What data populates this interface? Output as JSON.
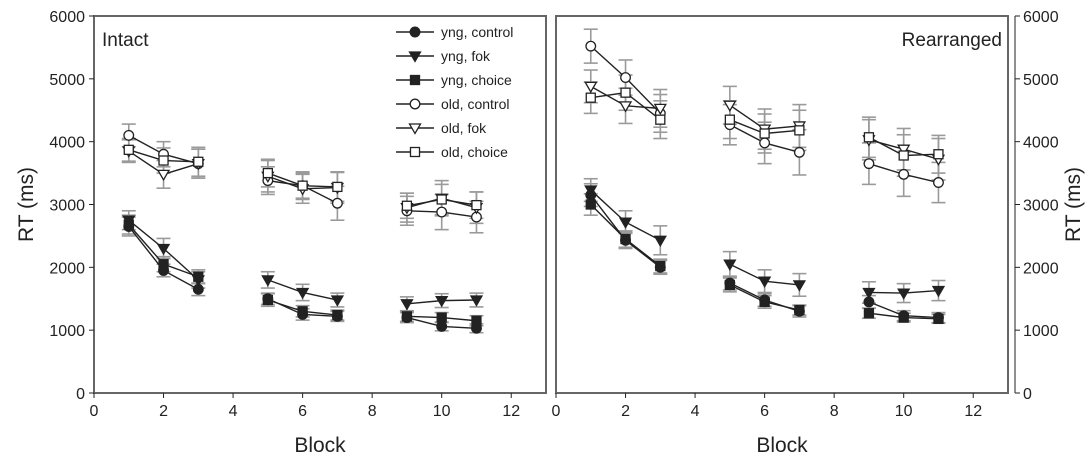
{
  "chart_data": [
    {
      "type": "line",
      "panel_title": "Intact",
      "xlabel": "Block",
      "ylabel": "RT (ms)",
      "xlim": [
        0,
        13
      ],
      "ylim": [
        0,
        6000
      ],
      "xticks": [
        0,
        2,
        4,
        6,
        8,
        10,
        12
      ],
      "yticks": [
        0,
        1000,
        2000,
        3000,
        4000,
        5000,
        6000
      ],
      "grid": false,
      "series": [
        {
          "name": "yng, control",
          "marker": "circle",
          "fill": "filled",
          "segments": [
            [
              [
                1,
                2650,
                150
              ],
              [
                2,
                1950,
                100
              ],
              [
                3,
                1650,
                100
              ]
            ],
            [
              [
                5,
                1500,
                90
              ],
              [
                6,
                1250,
                90
              ],
              [
                7,
                1220,
                80
              ]
            ],
            [
              [
                9,
                1200,
                80
              ],
              [
                10,
                1060,
                70
              ],
              [
                11,
                1030,
                70
              ]
            ]
          ]
        },
        {
          "name": "yng, fok",
          "marker": "triangle-down",
          "fill": "filled",
          "segments": [
            [
              [
                1,
                2750,
                150
              ],
              [
                2,
                2300,
                160
              ],
              [
                3,
                1800,
                130
              ]
            ],
            [
              [
                5,
                1800,
                130
              ],
              [
                6,
                1600,
                130
              ],
              [
                7,
                1480,
                110
              ]
            ],
            [
              [
                9,
                1420,
                110
              ],
              [
                10,
                1470,
                110
              ],
              [
                11,
                1480,
                110
              ]
            ]
          ]
        },
        {
          "name": "yng, choice",
          "marker": "square",
          "fill": "filled",
          "segments": [
            [
              [
                1,
                2680,
                150
              ],
              [
                2,
                2050,
                120
              ],
              [
                3,
                1850,
                110
              ]
            ],
            [
              [
                5,
                1480,
                100
              ],
              [
                6,
                1300,
                90
              ],
              [
                7,
                1240,
                80
              ]
            ],
            [
              [
                9,
                1220,
                80
              ],
              [
                10,
                1200,
                80
              ],
              [
                11,
                1150,
                80
              ]
            ]
          ]
        },
        {
          "name": "old, control",
          "marker": "circle",
          "fill": "open",
          "segments": [
            [
              [
                1,
                4100,
                180
              ],
              [
                2,
                3800,
                200
              ],
              [
                3,
                3650,
                230
              ]
            ],
            [
              [
                5,
                3380,
                220
              ],
              [
                6,
                3300,
                220
              ],
              [
                7,
                3020,
                270
              ]
            ],
            [
              [
                9,
                2900,
                230
              ],
              [
                10,
                2880,
                280
              ],
              [
                11,
                2800,
                250
              ]
            ]
          ]
        },
        {
          "name": "old, fok",
          "marker": "triangle-down",
          "fill": "open",
          "segments": [
            [
              [
                1,
                3850,
                180
              ],
              [
                2,
                3480,
                220
              ],
              [
                3,
                3650,
                230
              ]
            ],
            [
              [
                5,
                3450,
                250
              ],
              [
                6,
                3250,
                230
              ],
              [
                7,
                3270,
                250
              ]
            ],
            [
              [
                9,
                2950,
                230
              ],
              [
                10,
                3100,
                280
              ],
              [
                11,
                2950,
                250
              ]
            ]
          ]
        },
        {
          "name": "old, choice",
          "marker": "square",
          "fill": "open",
          "segments": [
            [
              [
                1,
                3870,
                180
              ],
              [
                2,
                3700,
                200
              ],
              [
                3,
                3680,
                230
              ]
            ],
            [
              [
                5,
                3500,
                220
              ],
              [
                6,
                3300,
                200
              ],
              [
                7,
                3280,
                230
              ]
            ],
            [
              [
                9,
                2980,
                200
              ],
              [
                10,
                3080,
                240
              ],
              [
                11,
                2990,
                210
              ]
            ]
          ]
        }
      ]
    },
    {
      "type": "line",
      "panel_title": "Rearranged",
      "xlabel": "Block",
      "ylabel": "RT (ms)",
      "xlim": [
        0,
        13
      ],
      "ylim": [
        0,
        6000
      ],
      "xticks": [
        0,
        2,
        4,
        6,
        8,
        10,
        12
      ],
      "yticks": [
        0,
        1000,
        2000,
        3000,
        4000,
        5000,
        6000
      ],
      "grid": false,
      "series": [
        {
          "name": "yng, control",
          "marker": "circle",
          "fill": "filled",
          "segments": [
            [
              [
                1,
                3150,
                180
              ],
              [
                2,
                2430,
                130
              ],
              [
                3,
                2000,
                110
              ]
            ],
            [
              [
                5,
                1750,
                110
              ],
              [
                6,
                1480,
                100
              ],
              [
                7,
                1300,
                90
              ]
            ],
            [
              [
                9,
                1450,
                100
              ],
              [
                10,
                1230,
                80
              ],
              [
                11,
                1200,
                80
              ]
            ]
          ]
        },
        {
          "name": "yng, fok",
          "marker": "triangle-down",
          "fill": "filled",
          "segments": [
            [
              [
                1,
                3230,
                180
              ],
              [
                2,
                2720,
                180
              ],
              [
                3,
                2430,
                230
              ]
            ],
            [
              [
                5,
                2050,
                200
              ],
              [
                6,
                1780,
                180
              ],
              [
                7,
                1720,
                180
              ]
            ],
            [
              [
                9,
                1600,
                170
              ],
              [
                10,
                1590,
                150
              ],
              [
                11,
                1630,
                160
              ]
            ]
          ]
        },
        {
          "name": "yng, choice",
          "marker": "square",
          "fill": "filled",
          "segments": [
            [
              [
                1,
                3000,
                170
              ],
              [
                2,
                2450,
                130
              ],
              [
                3,
                2020,
                110
              ]
            ],
            [
              [
                5,
                1720,
                110
              ],
              [
                6,
                1450,
                100
              ],
              [
                7,
                1320,
                80
              ]
            ],
            [
              [
                9,
                1270,
                80
              ],
              [
                10,
                1200,
                70
              ],
              [
                11,
                1180,
                70
              ]
            ]
          ]
        },
        {
          "name": "old, control",
          "marker": "circle",
          "fill": "open",
          "segments": [
            [
              [
                1,
                5520,
                270
              ],
              [
                2,
                5020,
                280
              ],
              [
                3,
                4450,
                300
              ]
            ],
            [
              [
                5,
                4270,
                320
              ],
              [
                6,
                3980,
                330
              ],
              [
                7,
                3830,
                360
              ]
            ],
            [
              [
                9,
                3650,
                330
              ],
              [
                10,
                3480,
                350
              ],
              [
                11,
                3350,
                320
              ]
            ]
          ]
        },
        {
          "name": "old, fok",
          "marker": "triangle-down",
          "fill": "open",
          "segments": [
            [
              [
                1,
                4880,
                260
              ],
              [
                2,
                4570,
                280
              ],
              [
                3,
                4530,
                300
              ]
            ],
            [
              [
                5,
                4580,
                300
              ],
              [
                6,
                4200,
                320
              ],
              [
                7,
                4250,
                340
              ]
            ],
            [
              [
                9,
                4030,
                320
              ],
              [
                10,
                3880,
                330
              ],
              [
                11,
                3720,
                330
              ]
            ]
          ]
        },
        {
          "name": "old, choice",
          "marker": "square",
          "fill": "open",
          "segments": [
            [
              [
                1,
                4700,
                250
              ],
              [
                2,
                4780,
                280
              ],
              [
                3,
                4350,
                300
              ]
            ],
            [
              [
                5,
                4350,
                300
              ],
              [
                6,
                4130,
                310
              ],
              [
                7,
                4180,
                320
              ]
            ],
            [
              [
                9,
                4070,
                320
              ],
              [
                10,
                3780,
                330
              ],
              [
                11,
                3800,
                300
              ]
            ]
          ]
        }
      ]
    }
  ],
  "legend": {
    "placement": "top-center",
    "entries": [
      "yng, control",
      "yng, fok",
      "yng, choice",
      "old, control",
      "old, fok",
      "old, choice"
    ]
  },
  "colors": {
    "line": "#222222",
    "errorbar": "#9a9a9a",
    "open_marker_fill": "#ffffff",
    "frame": "#666666"
  }
}
